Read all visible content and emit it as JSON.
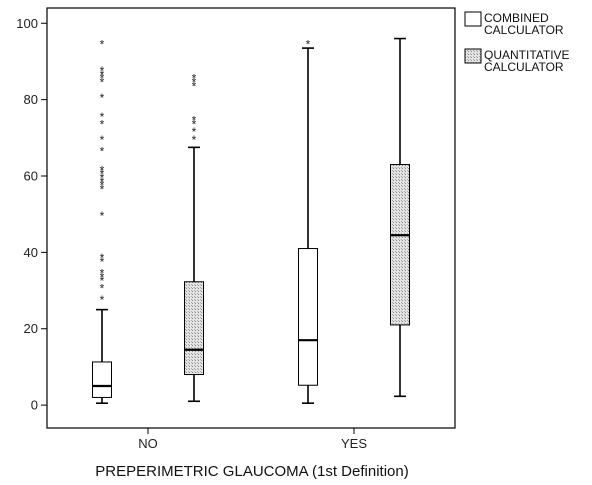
{
  "chart_data": {
    "type": "box",
    "xlabel": "PREPERIMETRIC GLAUCOMA (1st Definition)",
    "ylabel": "",
    "ylim": [
      -6,
      104
    ],
    "yticks": [
      0,
      20,
      40,
      60,
      80,
      100
    ],
    "categories": [
      "NO",
      "YES"
    ],
    "legend_position": "right",
    "series": [
      {
        "name": "COMBINED CALCULATOR",
        "fill": "#ffffff",
        "pattern": "none",
        "boxes": [
          {
            "category": "NO",
            "min": 0.5,
            "q1": 2.0,
            "median": 5.0,
            "q3": 11.3,
            "max": 25.0,
            "outliers": [
              28,
              31,
              33,
              34,
              35,
              38,
              39,
              50,
              57,
              58,
              59,
              60,
              61,
              62,
              67,
              70,
              74,
              76,
              81,
              85,
              86,
              87,
              88,
              95
            ]
          },
          {
            "category": "YES",
            "min": 0.5,
            "q1": 5.2,
            "median": 17.0,
            "q3": 41.0,
            "max": 93.5,
            "outliers": [
              95
            ]
          }
        ]
      },
      {
        "name": "QUANTITATIVE CALCULATOR",
        "fill": "#d4d4d4",
        "pattern": "checker",
        "boxes": [
          {
            "category": "NO",
            "min": 1.0,
            "q1": 8.0,
            "median": 14.5,
            "q3": 32.3,
            "max": 67.5,
            "outliers": [
              70,
              72,
              74,
              75,
              84,
              85,
              86
            ]
          },
          {
            "category": "YES",
            "min": 2.3,
            "q1": 21.0,
            "median": 44.5,
            "q3": 63.0,
            "max": 96.0,
            "outliers": []
          }
        ]
      }
    ]
  }
}
